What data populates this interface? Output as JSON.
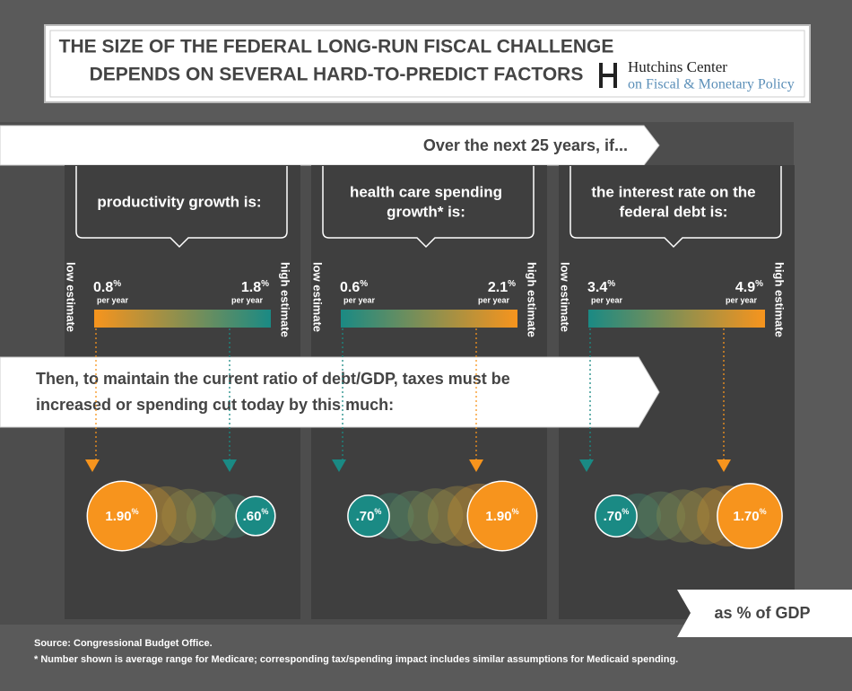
{
  "header": {
    "title": [
      "THE SIZE OF THE FEDERAL LONG-RUN FISCAL CHALLENGE",
      "DEPENDS ON SEVERAL HARD-TO-PREDICT FACTORS"
    ],
    "org": [
      "Hutchins Center",
      "on Fiscal & Monetary Policy"
    ]
  },
  "intro": "Over the next 25 years, if...",
  "low_estimate": "low estimate",
  "high_estimate": "high estimate",
  "per_year": "per year",
  "percent": "%",
  "panels": [
    {
      "question": [
        "productivity growth is:"
      ],
      "low_rate": "0.8",
      "high_rate": "1.8",
      "low_result": "1.90",
      "high_result": ".60"
    },
    {
      "question": [
        "health care spending",
        "growth* is:"
      ],
      "low_rate": "0.6",
      "high_rate": "2.1",
      "low_result": ".70",
      "high_result": "1.90"
    },
    {
      "question": [
        "the interest rate on the",
        "federal debt is:"
      ],
      "low_rate": "3.4",
      "high_rate": "4.9",
      "low_result": ".70",
      "high_result": "1.70"
    }
  ],
  "message": [
    "Then, to maintain the current ratio of debt/GDP, taxes must be",
    "increased or spending cut today by this much:"
  ],
  "unit_note": "as % of GDP",
  "source": "Source: Congressional Budget Office.",
  "footnote": "* Number shown is average range for Medicare; corresponding tax/spending impact includes similar assumptions for Medicaid spending."
}
